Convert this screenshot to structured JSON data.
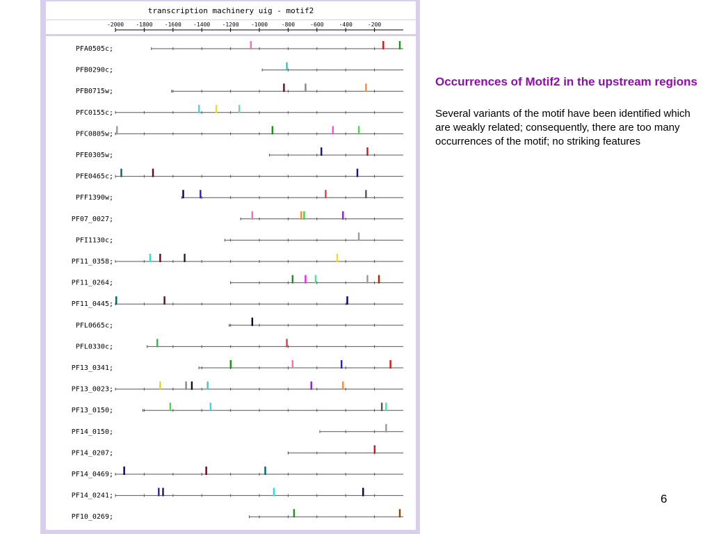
{
  "slide": {
    "heading": "Occurrences of Motif2 in the upstream regions",
    "body": "Several variants of the motif have been identified which are weakly related; consequently, there are too many occurrences of the motif; no striking features",
    "page_number": "6"
  },
  "chart_data": {
    "type": "sequence-motif-map",
    "title": "transcription machinery uig - motif2",
    "xlabel": "",
    "ylabel": "",
    "x_ticks": [
      -2000,
      -1800,
      -1600,
      -1400,
      -1200,
      -1000,
      -800,
      -600,
      -400,
      -200
    ],
    "xlim": [
      -2000,
      0
    ],
    "genes": [
      {
        "name": "PFA0505c;",
        "start": -1750,
        "motifs": [
          {
            "pos": -1060,
            "color": "#ff66cc"
          },
          {
            "pos": -140,
            "color": "#dd1111"
          },
          {
            "pos": -25,
            "color": "#119911"
          }
        ]
      },
      {
        "name": "PFB0290c;",
        "start": -980,
        "motifs": [
          {
            "pos": -810,
            "color": "#22cccc"
          }
        ]
      },
      {
        "name": "PFB0715w;",
        "start": -1610,
        "motifs": [
          {
            "pos": -830,
            "color": "#770033"
          },
          {
            "pos": -680,
            "color": "#888888"
          },
          {
            "pos": -260,
            "color": "#ff8833"
          }
        ]
      },
      {
        "name": "PFC0155c;",
        "start": -2000,
        "motifs": [
          {
            "pos": -1420,
            "color": "#33dddd"
          },
          {
            "pos": -1300,
            "color": "#eedd22"
          },
          {
            "pos": -1140,
            "color": "#66ddaa"
          }
        ]
      },
      {
        "name": "PFC0805w;",
        "start": -2000,
        "motifs": [
          {
            "pos": -1990,
            "color": "#999999"
          },
          {
            "pos": -910,
            "color": "#119911"
          },
          {
            "pos": -490,
            "color": "#ff44ff"
          },
          {
            "pos": -310,
            "color": "#44dd44"
          }
        ]
      },
      {
        "name": "PFE0305w;",
        "start": -930,
        "motifs": [
          {
            "pos": -570,
            "color": "#111199"
          },
          {
            "pos": -250,
            "color": "#dd1111"
          }
        ]
      },
      {
        "name": "PFE0465c;",
        "start": -2000,
        "motifs": [
          {
            "pos": -1960,
            "color": "#006666"
          },
          {
            "pos": -1740,
            "color": "#770011"
          },
          {
            "pos": -320,
            "color": "#111199"
          }
        ]
      },
      {
        "name": "PFF1390w;",
        "start": -1540,
        "motifs": [
          {
            "pos": -1530,
            "color": "#000066"
          },
          {
            "pos": -1410,
            "color": "#2222cc"
          },
          {
            "pos": -540,
            "color": "#ee3344"
          },
          {
            "pos": -260,
            "color": "#555555"
          }
        ]
      },
      {
        "name": "PF07_0027;",
        "start": -1130,
        "motifs": [
          {
            "pos": -1050,
            "color": "#ff66cc"
          },
          {
            "pos": -710,
            "color": "#ff8833"
          },
          {
            "pos": -690,
            "color": "#44cc44"
          },
          {
            "pos": -420,
            "color": "#8822cc"
          }
        ]
      },
      {
        "name": "PFI1130c;",
        "start": -1240,
        "motifs": [
          {
            "pos": -310,
            "color": "#999999"
          }
        ]
      },
      {
        "name": "PF11_0358;",
        "start": -2000,
        "motifs": [
          {
            "pos": -1760,
            "color": "#33dddd"
          },
          {
            "pos": -1690,
            "color": "#770011"
          },
          {
            "pos": -1520,
            "color": "#222222"
          },
          {
            "pos": -460,
            "color": "#eedd22"
          }
        ]
      },
      {
        "name": "PF11_0264;",
        "start": -1200,
        "motifs": [
          {
            "pos": -770,
            "color": "#119911"
          },
          {
            "pos": -680,
            "color": "#ee22ee"
          },
          {
            "pos": -610,
            "color": "#55dd99"
          },
          {
            "pos": -250,
            "color": "#999999"
          },
          {
            "pos": -170,
            "color": "#aa2200"
          }
        ]
      },
      {
        "name": "PF11_0445;",
        "start": -2000,
        "motifs": [
          {
            "pos": -1995,
            "color": "#006666"
          },
          {
            "pos": -1660,
            "color": "#770011"
          },
          {
            "pos": -390,
            "color": "#000066"
          }
        ]
      },
      {
        "name": "PFL0665c;",
        "start": -1210,
        "motifs": [
          {
            "pos": -1050,
            "color": "#000033"
          }
        ]
      },
      {
        "name": "PFL0330c;",
        "start": -1780,
        "motifs": [
          {
            "pos": -1710,
            "color": "#33bb33"
          },
          {
            "pos": -810,
            "color": "#ee3344"
          }
        ]
      },
      {
        "name": "PF13_0341;",
        "start": -1420,
        "motifs": [
          {
            "pos": -1200,
            "color": "#119911"
          },
          {
            "pos": -770,
            "color": "#ff66cc"
          },
          {
            "pos": -430,
            "color": "#2222cc"
          },
          {
            "pos": -90,
            "color": "#dd1111"
          }
        ]
      },
      {
        "name": "PF13_0023;",
        "start": -2000,
        "motifs": [
          {
            "pos": -1690,
            "color": "#eecc22"
          },
          {
            "pos": -1510,
            "color": "#888888"
          },
          {
            "pos": -1470,
            "color": "#111111"
          },
          {
            "pos": -1360,
            "color": "#33cccc"
          },
          {
            "pos": -640,
            "color": "#8822cc"
          },
          {
            "pos": -420,
            "color": "#ff8833"
          }
        ]
      },
      {
        "name": "PF13_0150;",
        "start": -1810,
        "motifs": [
          {
            "pos": -1620,
            "color": "#44dd44"
          },
          {
            "pos": -1340,
            "color": "#33dddd"
          },
          {
            "pos": -150,
            "color": "#555555"
          },
          {
            "pos": -120,
            "color": "#55dd99"
          }
        ]
      },
      {
        "name": "PF14_0150;",
        "start": -580,
        "motifs": [
          {
            "pos": -120,
            "color": "#999999"
          }
        ]
      },
      {
        "name": "PF14_0207;",
        "start": -800,
        "motifs": [
          {
            "pos": -200,
            "color": "#dd1111"
          }
        ]
      },
      {
        "name": "PF14_0469;",
        "start": -2000,
        "motifs": [
          {
            "pos": -1940,
            "color": "#000066"
          },
          {
            "pos": -1370,
            "color": "#770011"
          },
          {
            "pos": -960,
            "color": "#006666"
          }
        ]
      },
      {
        "name": "PF14_0241;",
        "start": -2000,
        "motifs": [
          {
            "pos": -1700,
            "color": "#2222cc"
          },
          {
            "pos": -1670,
            "color": "#111199"
          },
          {
            "pos": -900,
            "color": "#33dddd"
          },
          {
            "pos": -280,
            "color": "#000066"
          }
        ]
      },
      {
        "name": "PF10_0269;",
        "start": -1070,
        "motifs": [
          {
            "pos": -760,
            "color": "#119911"
          },
          {
            "pos": -25,
            "color": "#884400"
          }
        ]
      }
    ]
  }
}
